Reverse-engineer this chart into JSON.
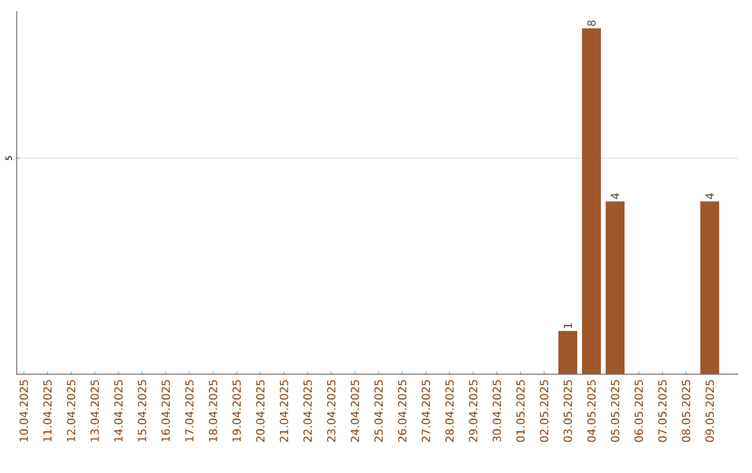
{
  "chart_data": {
    "type": "bar",
    "ylim": [
      0,
      8.4
    ],
    "categories": [
      "10.04.2025",
      "11.04.2025",
      "12.04.2025",
      "13.04.2025",
      "14.04.2025",
      "15.04.2025",
      "16.04.2025",
      "17.04.2025",
      "18.04.2025",
      "19.04.2025",
      "20.04.2025",
      "21.04.2025",
      "22.04.2025",
      "23.04.2025",
      "24.04.2025",
      "25.04.2025",
      "26.04.2025",
      "27.04.2025",
      "28.04.2025",
      "29.04.2025",
      "30.04.2025",
      "01.05.2025",
      "02.05.2025",
      "03.05.2025",
      "04.05.2025",
      "05.05.2025",
      "06.05.2025",
      "07.05.2025",
      "08.05.2025",
      "09.05.2025"
    ],
    "values": [
      null,
      null,
      null,
      null,
      null,
      null,
      null,
      null,
      null,
      null,
      null,
      null,
      null,
      null,
      null,
      null,
      null,
      null,
      null,
      null,
      null,
      null,
      null,
      1,
      8,
      4,
      null,
      null,
      null,
      4
    ],
    "value_labels": [
      null,
      null,
      null,
      null,
      null,
      null,
      null,
      null,
      null,
      null,
      null,
      null,
      null,
      null,
      null,
      null,
      null,
      null,
      null,
      null,
      null,
      null,
      null,
      "1",
      "8",
      "4",
      null,
      null,
      null,
      "4"
    ],
    "yticks": [
      5
    ],
    "grid": "y",
    "color": "#a0572c"
  }
}
